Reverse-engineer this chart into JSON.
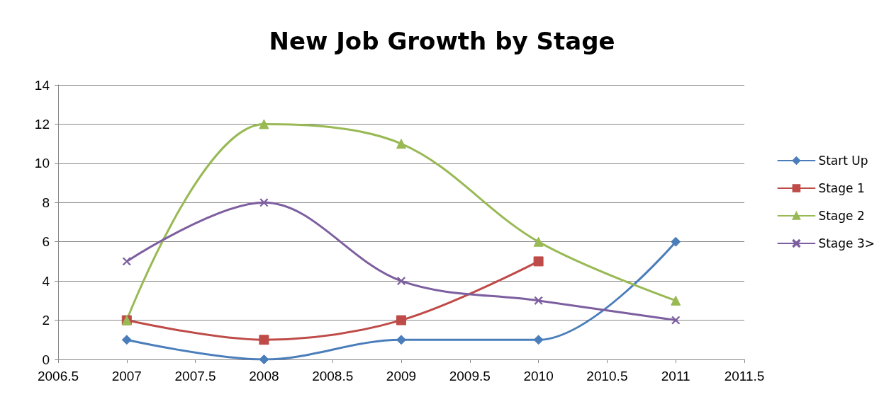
{
  "chart_data": {
    "type": "line",
    "title": "New Job Growth by Stage",
    "x": [
      2007,
      2008,
      2009,
      2010,
      2011
    ],
    "series": [
      {
        "name": "Start Up",
        "color": "#4a7ebb",
        "marker": "diamond",
        "values": [
          1,
          0,
          1,
          1,
          6
        ]
      },
      {
        "name": "Stage 1",
        "color": "#be4b48",
        "marker": "square",
        "values": [
          2,
          1,
          2,
          5,
          null
        ]
      },
      {
        "name": "Stage 2",
        "color": "#98b954",
        "marker": "triangle",
        "values": [
          2,
          12,
          11,
          6,
          3
        ]
      },
      {
        "name": "Stage 3>",
        "color": "#7d5fa0",
        "marker": "cross",
        "values": [
          5,
          8,
          4,
          3,
          2
        ]
      }
    ],
    "xlim": [
      2006.5,
      2011.5
    ],
    "xticks": [
      2006.5,
      2007,
      2007.5,
      2008,
      2008.5,
      2009,
      2009.5,
      2010,
      2010.5,
      2011,
      2011.5
    ],
    "ylim": [
      0,
      14
    ],
    "yticks": [
      0,
      2,
      4,
      6,
      8,
      10,
      12,
      14
    ],
    "grid": "y",
    "legend": "right"
  }
}
